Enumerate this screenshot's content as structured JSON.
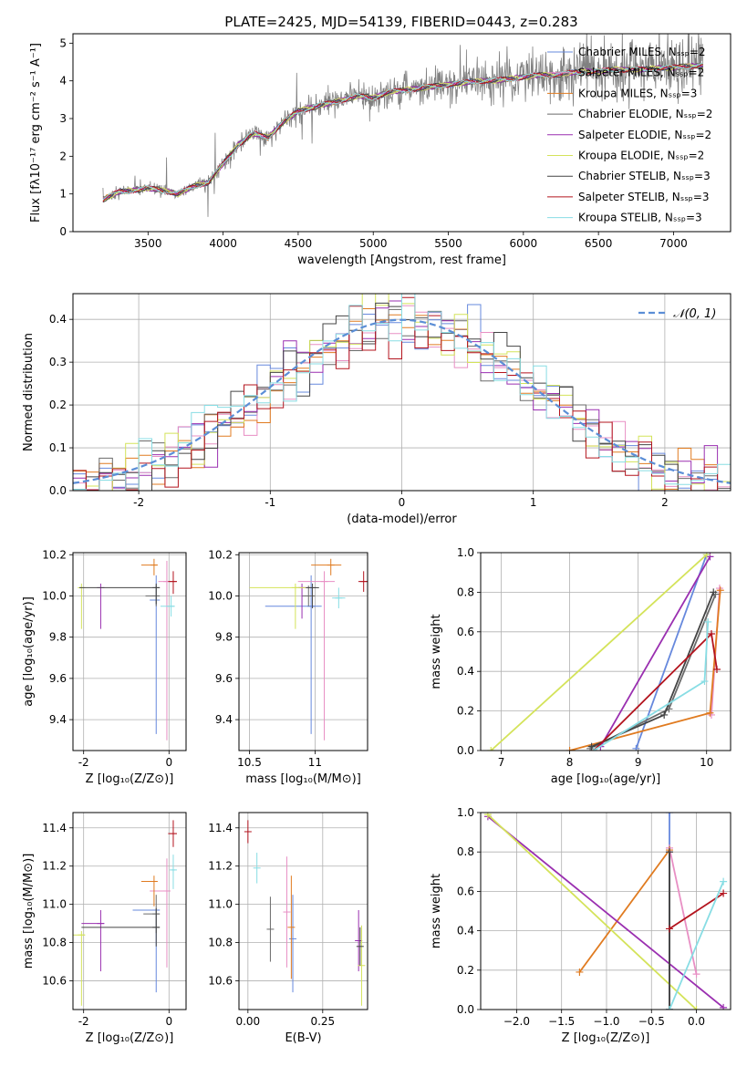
{
  "title": "PLATE=2425, MJD=54139, FIBERID=0443, z=0.283",
  "chart_data": [
    {
      "id": "spectrum",
      "type": "line",
      "xlabel": "wavelength [Angstrom, rest frame]",
      "ylabel": "Flux [fλ10⁻¹⁷ erg cm⁻² s⁻¹ A⁻¹]",
      "xlim": [
        3000,
        7380
      ],
      "ylim": [
        0,
        5.25
      ],
      "xticks": [
        3500,
        4000,
        4500,
        5000,
        5500,
        6000,
        6500,
        7000
      ],
      "yticks": [
        0,
        1,
        2,
        3,
        4,
        5
      ],
      "grid": false,
      "legend_position": "top-right",
      "continuum": {
        "x": [
          3200,
          3300,
          3400,
          3500,
          3600,
          3700,
          3800,
          3900,
          4000,
          4100,
          4200,
          4300,
          4400,
          4500,
          4600,
          4700,
          4800,
          4900,
          5000,
          5100,
          5200,
          5300,
          5400,
          5500,
          5600,
          5700,
          5800,
          5900,
          6000,
          6100,
          6200,
          6300,
          6400,
          6500,
          6600,
          6700,
          6800,
          6900,
          7000,
          7100,
          7200
        ],
        "y": [
          0.85,
          1.05,
          1.1,
          1.15,
          1.1,
          1.0,
          1.2,
          1.3,
          1.8,
          2.3,
          2.6,
          2.5,
          2.9,
          3.2,
          3.3,
          3.4,
          3.5,
          3.6,
          3.55,
          3.7,
          3.75,
          3.8,
          3.85,
          3.9,
          3.95,
          4.0,
          4.0,
          4.05,
          4.1,
          4.15,
          4.15,
          4.2,
          4.25,
          4.25,
          4.3,
          4.3,
          4.3,
          4.35,
          4.35,
          4.4,
          4.4
        ]
      },
      "series": [
        {
          "name": "Chabrier MILES, N_SSP=2",
          "color": "#6688dd"
        },
        {
          "name": "Salpeter MILES, N_SSP=2",
          "color": "#e88fc4"
        },
        {
          "name": "Kroupa MILES, N_SSP=3",
          "color": "#e07b20"
        },
        {
          "name": "Chabrier ELODIE, N_SSP=2",
          "color": "#6a6a6a"
        },
        {
          "name": "Salpeter ELODIE, N_SSP=2",
          "color": "#9a2fb0"
        },
        {
          "name": "Kroupa ELODIE, N_SSP=2",
          "color": "#d4e35a"
        },
        {
          "name": "Chabrier STELIB, N_SSP=3",
          "color": "#444444"
        },
        {
          "name": "Salpeter STELIB, N_SSP=3",
          "color": "#b3141e"
        },
        {
          "name": "Kroupa STELIB, N_SSP=3",
          "color": "#88dde4"
        }
      ],
      "data_color": "#808080"
    },
    {
      "id": "residuals",
      "type": "line",
      "xlabel": "(data-model)/error",
      "ylabel": "Normed distribution",
      "xlim": [
        -2.5,
        2.5
      ],
      "ylim": [
        0,
        0.46
      ],
      "xticks": [
        -2,
        -1,
        0,
        1,
        2
      ],
      "yticks": [
        0.0,
        0.1,
        0.2,
        0.3,
        0.4
      ],
      "grid": true,
      "legend_position": "top-right",
      "gauss_label": "𝒩(0, 1)",
      "gauss_color": "#5b8ed6",
      "bin_width": 0.1
    },
    {
      "id": "age-vs-Z",
      "type": "scatter",
      "xlabel": "Z [log₁₀(Z/Z⊙)]",
      "ylabel": "age  [log₁₀(age/yr)]",
      "xlim": [
        -2.25,
        0.4
      ],
      "ylim": [
        9.25,
        10.21
      ],
      "xticks": [
        -2,
        0
      ],
      "yticks": [
        9.4,
        9.6,
        9.8,
        10.0,
        10.2
      ],
      "grid": true,
      "points": [
        {
          "x": -0.3,
          "y": 9.98,
          "xerr": 0.15,
          "yerr": [
            0.65,
            0.12
          ],
          "color": "#6688dd"
        },
        {
          "x": -0.05,
          "y": 10.07,
          "xerr": 0.2,
          "yerr": [
            0.77,
            0.1
          ],
          "color": "#e88fc4"
        },
        {
          "x": -0.35,
          "y": 10.15,
          "xerr": 0.3,
          "yerr": [
            0.05,
            0.03
          ],
          "color": "#e07b20"
        },
        {
          "x": -0.3,
          "y": 10.0,
          "xerr": 0.25,
          "yerr": [
            0.05,
            0.05
          ],
          "color": "#6a6a6a"
        },
        {
          "x": -1.6,
          "y": 10.04,
          "xerr": 0.0,
          "yerr": [
            0.2,
            0.02
          ],
          "color": "#9a2fb0"
        },
        {
          "x": -2.05,
          "y": 10.04,
          "xerr": 0.0,
          "yerr": [
            0.2,
            0.02
          ],
          "color": "#d4e35a"
        },
        {
          "x": -0.3,
          "y": 10.04,
          "xerr": 1.8,
          "yerr": [
            0.08,
            0.02
          ],
          "color": "#444444"
        },
        {
          "x": 0.1,
          "y": 10.07,
          "xerr": 0.12,
          "yerr": [
            0.06,
            0.05
          ],
          "color": "#b3141e"
        },
        {
          "x": 0.05,
          "y": 9.95,
          "xerr": 0.25,
          "yerr": [
            0.05,
            0.05
          ],
          "color": "#88dde4"
        }
      ]
    },
    {
      "id": "age-vs-mass",
      "type": "scatter",
      "xlabel": "mass [log₁₀(M/M⊙)]",
      "ylabel": "",
      "xlim": [
        10.42,
        11.4
      ],
      "ylim": [
        9.25,
        10.21
      ],
      "xticks": [
        10.5,
        11.0
      ],
      "yticks": [
        9.4,
        9.6,
        9.8,
        10.0,
        10.2
      ],
      "grid": true,
      "points": [
        {
          "x": 10.97,
          "y": 9.95,
          "xerr": 0.35,
          "yerr": [
            0.62,
            0.15
          ],
          "color": "#6688dd"
        },
        {
          "x": 11.07,
          "y": 10.07,
          "xerr": 0.2,
          "yerr": [
            0.77,
            0.05
          ],
          "color": "#e88fc4"
        },
        {
          "x": 11.12,
          "y": 10.15,
          "xerr": 0.15,
          "yerr": [
            0.05,
            0.03
          ],
          "color": "#e07b20"
        },
        {
          "x": 10.95,
          "y": 10.0,
          "xerr": 0.05,
          "yerr": [
            0.05,
            0.05
          ],
          "color": "#6a6a6a"
        },
        {
          "x": 10.9,
          "y": 10.04,
          "xerr": 0.05,
          "yerr": [
            0.15,
            0.02
          ],
          "color": "#9a2fb0"
        },
        {
          "x": 10.85,
          "y": 10.04,
          "xerr": 0.35,
          "yerr": [
            0.2,
            0.02
          ],
          "color": "#d4e35a"
        },
        {
          "x": 10.98,
          "y": 10.04,
          "xerr": 0.05,
          "yerr": [
            0.1,
            0.02
          ],
          "color": "#444444"
        },
        {
          "x": 11.37,
          "y": 10.07,
          "xerr": 0.04,
          "yerr": [
            0.05,
            0.05
          ],
          "color": "#b3141e"
        },
        {
          "x": 11.18,
          "y": 9.99,
          "xerr": 0.05,
          "yerr": [
            0.05,
            0.05
          ],
          "color": "#88dde4"
        }
      ]
    },
    {
      "id": "mass-weight-vs-age",
      "type": "line",
      "xlabel": "age  [log₁₀(age/yr)]",
      "ylabel": "mass weight",
      "xlim": [
        6.7,
        10.35
      ],
      "ylim": [
        0,
        1.0
      ],
      "xticks": [
        7,
        8,
        9,
        10
      ],
      "yticks": [
        0.0,
        0.2,
        0.4,
        0.6,
        0.8,
        1.0
      ],
      "grid": true,
      "series": [
        {
          "color": "#6688dd",
          "x": [
            8.97,
            10.0
          ],
          "y": [
            0.01,
            0.99
          ]
        },
        {
          "color": "#e88fc4",
          "x": [
            10.19,
            10.07
          ],
          "y": [
            0.82,
            0.18
          ]
        },
        {
          "color": "#e07b20",
          "x": [
            8.0,
            10.05,
            10.2
          ],
          "y": [
            0.0,
            0.19,
            0.81
          ]
        },
        {
          "color": "#6a6a6a",
          "x": [
            8.3,
            9.45,
            10.13
          ],
          "y": [
            0.01,
            0.21,
            0.79
          ]
        },
        {
          "color": "#9a2fb0",
          "x": [
            8.45,
            10.05
          ],
          "y": [
            0.02,
            0.98
          ]
        },
        {
          "color": "#d4e35a",
          "x": [
            6.85,
            10.0
          ],
          "y": [
            0.0,
            0.99
          ]
        },
        {
          "color": "#444444",
          "x": [
            8.32,
            9.38,
            10.1
          ],
          "y": [
            0.02,
            0.18,
            0.8
          ]
        },
        {
          "color": "#b3141e",
          "x": [
            8.35,
            10.07,
            10.15
          ],
          "y": [
            0.0,
            0.59,
            0.41
          ]
        },
        {
          "color": "#88dde4",
          "x": [
            8.35,
            9.97,
            10.02
          ],
          "y": [
            0.0,
            0.35,
            0.65
          ]
        }
      ]
    },
    {
      "id": "mass-vs-Z",
      "type": "scatter",
      "xlabel": "Z [log₁₀(Z/Z⊙)]",
      "ylabel": "mass [log₁₀(M/M⊙)]",
      "xlim": [
        -2.25,
        0.4
      ],
      "ylim": [
        10.45,
        11.48
      ],
      "xticks": [
        -2,
        0
      ],
      "yticks": [
        10.6,
        10.8,
        11.0,
        11.2,
        11.4
      ],
      "grid": true,
      "points": [
        {
          "x": -0.3,
          "y": 10.97,
          "xerr": 0.55,
          "yerr": [
            0.43,
            0.0
          ],
          "color": "#6688dd"
        },
        {
          "x": -0.05,
          "y": 11.07,
          "xerr": 0.4,
          "yerr": [
            0.4,
            0.17
          ],
          "color": "#e88fc4"
        },
        {
          "x": -0.35,
          "y": 11.12,
          "xerr": 0.3,
          "yerr": [
            0.13,
            0.03
          ],
          "color": "#e07b20"
        },
        {
          "x": -0.3,
          "y": 10.95,
          "xerr": 0.3,
          "yerr": [
            0.1,
            0.1
          ],
          "color": "#6a6a6a"
        },
        {
          "x": -1.6,
          "y": 10.9,
          "xerr": 0.45,
          "yerr": [
            0.25,
            0.07
          ],
          "color": "#9a2fb0"
        },
        {
          "x": -2.05,
          "y": 10.84,
          "xerr": 1.7,
          "yerr": [
            0.37,
            0.02
          ],
          "color": "#d4e35a"
        },
        {
          "x": -0.3,
          "y": 10.88,
          "xerr": 1.75,
          "yerr": [
            0.1,
            0.1
          ],
          "color": "#444444"
        },
        {
          "x": 0.1,
          "y": 11.37,
          "xerr": 0.12,
          "yerr": [
            0.07,
            0.07
          ],
          "color": "#b3141e"
        },
        {
          "x": 0.1,
          "y": 11.18,
          "xerr": 0.05,
          "yerr": [
            0.1,
            0.08
          ],
          "color": "#88dde4"
        }
      ]
    },
    {
      "id": "mass-vs-ebv",
      "type": "scatter",
      "xlabel": "E(B-V)",
      "ylabel": "",
      "xlim": [
        -0.03,
        0.4
      ],
      "ylim": [
        10.45,
        11.48
      ],
      "xticks": [
        0.0,
        0.25
      ],
      "xticklabels": [
        "0.00",
        "0.25"
      ],
      "yticks": [
        10.6,
        10.8,
        11.0,
        11.2,
        11.4
      ],
      "grid": true,
      "points": [
        {
          "x": 0.15,
          "y": 10.82,
          "yerr": [
            0.28,
            0.23
          ],
          "color": "#6688dd"
        },
        {
          "x": 0.13,
          "y": 10.96,
          "yerr": [
            0.29,
            0.29
          ],
          "color": "#e88fc4"
        },
        {
          "x": 0.145,
          "y": 10.88,
          "yerr": [
            0.27,
            0.27
          ],
          "color": "#e07b20"
        },
        {
          "x": 0.075,
          "y": 10.87,
          "yerr": [
            0.17,
            0.17
          ],
          "color": "#6a6a6a"
        },
        {
          "x": 0.37,
          "y": 10.81,
          "yerr": [
            0.16,
            0.16
          ],
          "color": "#9a2fb0"
        },
        {
          "x": 0.38,
          "y": 10.68,
          "yerr": [
            0.21,
            0.21
          ],
          "color": "#d4e35a"
        },
        {
          "x": 0.375,
          "y": 10.78,
          "yerr": [
            0.1,
            0.1
          ],
          "color": "#444444"
        },
        {
          "x": 0.0,
          "y": 11.38,
          "yerr": [
            0.06,
            0.06
          ],
          "color": "#b3141e"
        },
        {
          "x": 0.03,
          "y": 11.19,
          "yerr": [
            0.08,
            0.08
          ],
          "color": "#88dde4"
        }
      ]
    },
    {
      "id": "mass-weight-vs-Z",
      "type": "line",
      "xlabel": "Z [log₁₀(Z/Z⊙)]",
      "ylabel": "mass weight",
      "xlim": [
        -2.4,
        0.38
      ],
      "ylim": [
        0,
        1.0
      ],
      "xticks": [
        -2.0,
        -1.5,
        -1.0,
        -0.5,
        0.0
      ],
      "xticklabels": [
        "−2.0",
        "−1.5",
        "−1.0",
        "−0.5",
        "0.0"
      ],
      "yticks": [
        0.0,
        0.2,
        0.4,
        0.6,
        0.8,
        1.0
      ],
      "grid": true,
      "series": [
        {
          "color": "#6688dd",
          "x": [
            -0.3,
            -0.3
          ],
          "y": [
            0.0,
            1.0
          ]
        },
        {
          "color": "#e88fc4",
          "x": [
            -0.3,
            0.0
          ],
          "y": [
            0.82,
            0.18
          ]
        },
        {
          "color": "#e07b20",
          "x": [
            -1.3,
            -0.3
          ],
          "y": [
            0.19,
            0.81
          ]
        },
        {
          "color": "#6a6a6a",
          "x": [
            -0.3,
            -0.3
          ],
          "y": [
            0.0,
            0.8
          ]
        },
        {
          "color": "#9a2fb0",
          "x": [
            -2.32,
            0.3
          ],
          "y": [
            0.98,
            0.01
          ]
        },
        {
          "color": "#d4e35a",
          "x": [
            -2.32,
            0.0
          ],
          "y": [
            0.99,
            0.0
          ]
        },
        {
          "color": "#444444",
          "x": [
            -0.3,
            -0.3
          ],
          "y": [
            0.0,
            0.8
          ]
        },
        {
          "color": "#b3141e",
          "x": [
            -0.3,
            0.3
          ],
          "y": [
            0.41,
            0.59
          ]
        },
        {
          "color": "#88dde4",
          "x": [
            -0.3,
            0.3
          ],
          "y": [
            0.0,
            0.65
          ]
        }
      ]
    }
  ]
}
